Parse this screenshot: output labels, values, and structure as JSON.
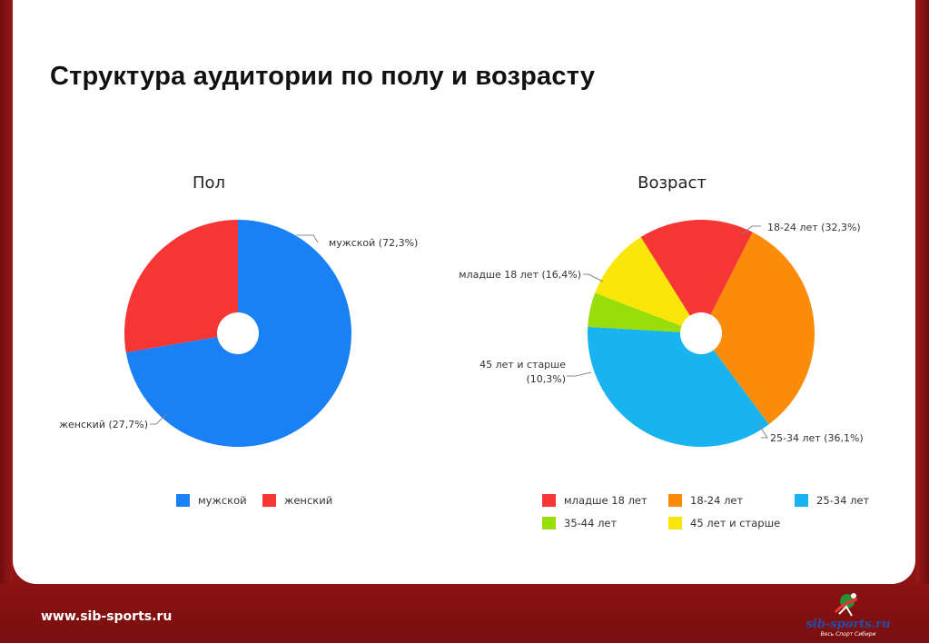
{
  "slide": {
    "title": "Структура аудитории по полу и возрасту"
  },
  "footer": {
    "url": "www.sib-sports.ru",
    "logo_text": "sib-sports.ru",
    "logo_tagline": "Весь Спорт Сибири"
  },
  "colors": {
    "male": "#1a80f5",
    "female": "#f63535",
    "under18": "#f63535",
    "age18_24": "#fb8c0a",
    "age25_34": "#19b3ef",
    "age35_44": "#99dd0a",
    "age45plus": "#fbe60a"
  },
  "chart_data": [
    {
      "type": "pie",
      "title": "Пол",
      "categories": [
        "мужской",
        "женский"
      ],
      "values": [
        72.3,
        27.7
      ],
      "slice_labels": [
        "мужской (72,3%)",
        "женский (27,7%)"
      ],
      "legend": [
        "мужской",
        "женский"
      ],
      "legend_position": "bottom"
    },
    {
      "type": "pie",
      "title": "Возраст",
      "categories": [
        "младше 18 лет",
        "18-24 лет",
        "25-34 лет",
        "35-44 лет",
        "45 лет и старше"
      ],
      "values": [
        16.4,
        32.3,
        36.1,
        4.9,
        10.3
      ],
      "slice_labels": [
        "младше 18 лет (16,4%)",
        "18-24 лет (32,3%)",
        "25-34 лет (36,1%)",
        "45 лет и старше",
        "(10,3%)"
      ],
      "legend": [
        "младше 18 лет",
        "18-24 лет",
        "25-34 лет",
        "35-44 лет",
        "45 лет и старше"
      ],
      "legend_position": "bottom"
    }
  ]
}
